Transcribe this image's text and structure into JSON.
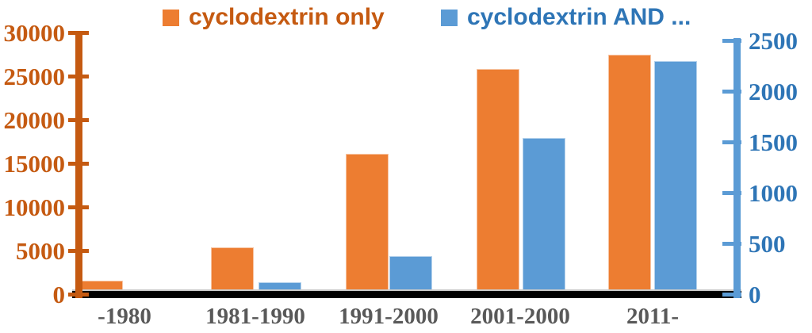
{
  "chart_data": {
    "type": "bar",
    "title": "",
    "categories": [
      "-1980",
      "1981-1990",
      "1991-2000",
      "2001-2000",
      "2011-"
    ],
    "series": [
      {
        "name": "cyclodextrin only",
        "axis": "left",
        "color": "#ED7D31",
        "label_color": "#C55A11",
        "values": [
          1500,
          5300,
          16000,
          25700,
          27400
        ]
      },
      {
        "name": "cyclodextrin AND ...",
        "axis": "right",
        "color": "#5B9BD5",
        "label_color": "#2E75B6",
        "values": [
          35,
          110,
          370,
          1530,
          2290
        ]
      }
    ],
    "left_axis": {
      "min": 0,
      "max": 30000,
      "ticks": [
        0,
        5000,
        10000,
        15000,
        20000,
        25000,
        30000
      ],
      "color": "#C55A11"
    },
    "right_axis": {
      "min": 0,
      "max": 2500,
      "ticks": [
        0,
        500,
        1000,
        1500,
        2000,
        2500
      ],
      "color": "#5B9BD5",
      "label_color": "#2E75B6"
    },
    "x_axis": {
      "line_color": "#000000",
      "label_color": "#595959"
    },
    "legend_position": "top",
    "grid": false
  }
}
